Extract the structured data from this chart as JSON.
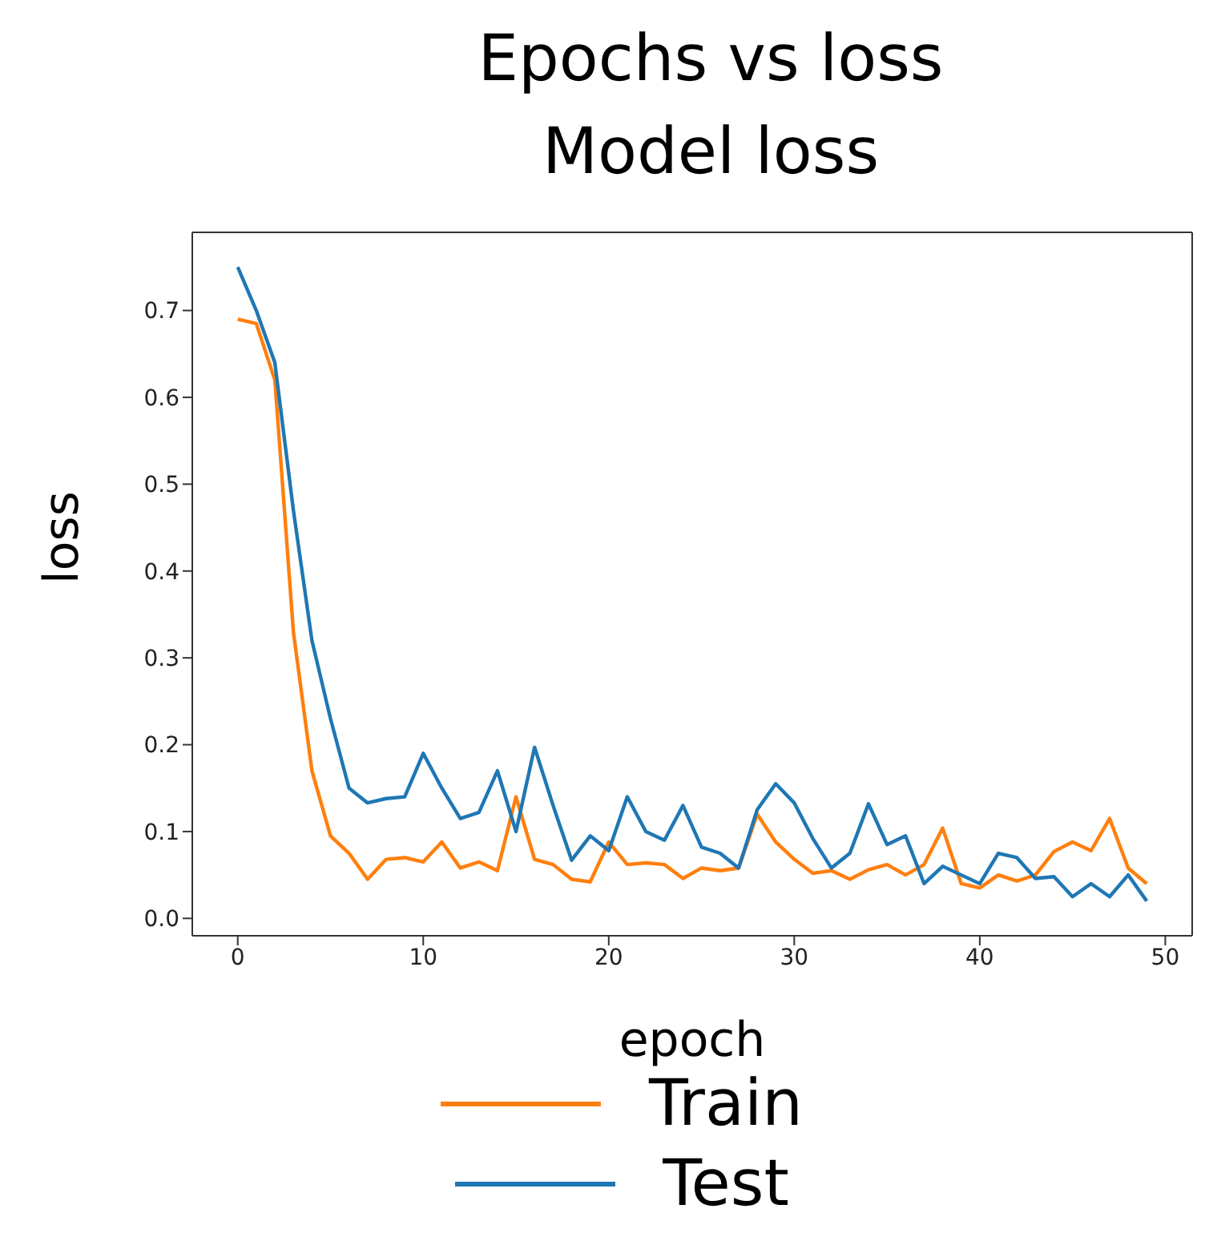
{
  "chart_data": {
    "type": "line",
    "title": "Epochs vs loss",
    "subtitle": "Model loss",
    "xlabel": "epoch",
    "ylabel": "loss",
    "x": [
      0,
      1,
      2,
      3,
      4,
      5,
      6,
      7,
      8,
      9,
      10,
      11,
      12,
      13,
      14,
      15,
      16,
      17,
      18,
      19,
      20,
      21,
      22,
      23,
      24,
      25,
      26,
      27,
      28,
      29,
      30,
      31,
      32,
      33,
      34,
      35,
      36,
      37,
      38,
      39,
      40,
      41,
      42,
      43,
      44,
      45,
      46,
      47,
      48,
      49
    ],
    "series": [
      {
        "name": "Train",
        "color": "#ff7f0e",
        "values": [
          0.69,
          0.685,
          0.62,
          0.33,
          0.17,
          0.095,
          0.075,
          0.045,
          0.068,
          0.07,
          0.065,
          0.088,
          0.058,
          0.065,
          0.055,
          0.14,
          0.068,
          0.062,
          0.045,
          0.042,
          0.088,
          0.062,
          0.064,
          0.062,
          0.046,
          0.058,
          0.055,
          0.058,
          0.12,
          0.088,
          0.068,
          0.052,
          0.055,
          0.045,
          0.056,
          0.062,
          0.05,
          0.062,
          0.104,
          0.04,
          0.035,
          0.05,
          0.043,
          0.05,
          0.077,
          0.088,
          0.078,
          0.115,
          0.058,
          0.04
        ]
      },
      {
        "name": "Test",
        "color": "#1f77b4",
        "values": [
          0.75,
          0.7,
          0.64,
          0.47,
          0.32,
          0.23,
          0.15,
          0.133,
          0.138,
          0.14,
          0.19,
          0.15,
          0.115,
          0.122,
          0.17,
          0.1,
          0.197,
          0.13,
          0.067,
          0.095,
          0.078,
          0.14,
          0.1,
          0.09,
          0.13,
          0.082,
          0.075,
          0.058,
          0.125,
          0.155,
          0.133,
          0.092,
          0.058,
          0.075,
          0.132,
          0.085,
          0.095,
          0.04,
          0.06,
          0.05,
          0.04,
          0.075,
          0.07,
          0.046,
          0.048,
          0.025,
          0.04,
          0.025,
          0.05,
          0.02
        ]
      }
    ],
    "xlim": [
      -2.45,
      51.45
    ],
    "xticks": [
      0,
      10,
      20,
      30,
      40,
      50
    ],
    "ylim": [
      -0.02,
      0.79
    ],
    "yticks": [
      {
        "value": 0,
        "label": "0.0"
      },
      0.1,
      0.2,
      0.3,
      0.4,
      0.5,
      0.6,
      0.7
    ],
    "grid": false,
    "legend": "bottom",
    "marker": "none",
    "line_style": "solid"
  }
}
